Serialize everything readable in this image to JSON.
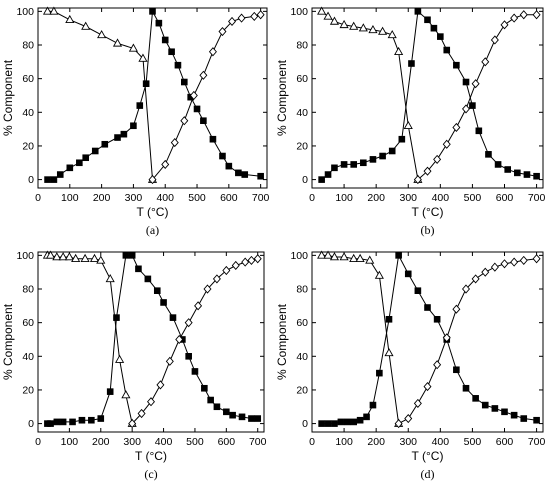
{
  "chart_data": [
    {
      "type": "line",
      "panel_label": "(a)",
      "xlabel": "T (°C)",
      "ylabel": "% Component",
      "xlim": [
        0,
        720
      ],
      "ylim": [
        -5,
        102
      ],
      "xticks": [
        0,
        100,
        200,
        300,
        400,
        500,
        600,
        700
      ],
      "yticks": [
        0,
        20,
        40,
        60,
        80,
        100
      ],
      "grid": false,
      "series": [
        {
          "marker": "triangle-open",
          "x": [
            30,
            50,
            100,
            150,
            200,
            250,
            300,
            330,
            360
          ],
          "y": [
            100,
            100,
            95,
            91,
            86,
            81,
            78,
            72,
            0
          ]
        },
        {
          "marker": "square-filled",
          "x": [
            30,
            50,
            70,
            100,
            130,
            150,
            180,
            210,
            250,
            270,
            300,
            320,
            340,
            360,
            380,
            400,
            420,
            440,
            460,
            480,
            500,
            520,
            550,
            580,
            600,
            630,
            650,
            700
          ],
          "y": [
            0,
            0,
            3,
            7,
            10,
            13,
            17,
            21,
            25,
            27,
            32,
            44,
            57,
            100,
            93,
            83,
            76,
            68,
            58,
            49,
            42,
            35,
            24,
            14,
            8,
            4,
            3,
            2
          ]
        },
        {
          "marker": "diamond-open",
          "x": [
            360,
            400,
            430,
            460,
            490,
            520,
            550,
            580,
            610,
            640,
            680,
            700
          ],
          "y": [
            0,
            9,
            22,
            35,
            50,
            62,
            76,
            88,
            94,
            96,
            97,
            98
          ]
        }
      ]
    },
    {
      "type": "line",
      "panel_label": "(b)",
      "xlabel": "T (°C)",
      "ylabel": "% Component",
      "xlim": [
        0,
        720
      ],
      "ylim": [
        -5,
        102
      ],
      "xticks": [
        0,
        100,
        200,
        300,
        400,
        500,
        600,
        700
      ],
      "yticks": [
        0,
        20,
        40,
        60,
        80,
        100
      ],
      "grid": false,
      "series": [
        {
          "marker": "triangle-open",
          "x": [
            30,
            50,
            70,
            100,
            130,
            160,
            190,
            220,
            250,
            270,
            300,
            330
          ],
          "y": [
            100,
            97,
            94,
            92,
            91,
            90,
            89,
            88,
            86,
            76,
            32,
            0
          ]
        },
        {
          "marker": "square-filled",
          "x": [
            30,
            50,
            70,
            100,
            130,
            160,
            190,
            220,
            250,
            280,
            310,
            330,
            360,
            380,
            400,
            420,
            450,
            480,
            500,
            520,
            550,
            580,
            610,
            640,
            670,
            700
          ],
          "y": [
            0,
            3,
            7,
            9,
            9,
            10,
            12,
            14,
            17,
            24,
            69,
            100,
            95,
            90,
            85,
            77,
            68,
            58,
            44,
            29,
            15,
            9,
            6,
            4,
            3,
            2
          ]
        },
        {
          "marker": "diamond-open",
          "x": [
            330,
            360,
            390,
            420,
            450,
            480,
            510,
            540,
            570,
            600,
            630,
            660,
            700
          ],
          "y": [
            0,
            5,
            12,
            21,
            31,
            42,
            57,
            70,
            83,
            92,
            96,
            98,
            98
          ]
        }
      ]
    },
    {
      "type": "line",
      "panel_label": "(c)",
      "xlabel": "T (°C)",
      "ylabel": "% Component",
      "xlim": [
        0,
        720
      ],
      "ylim": [
        -5,
        102
      ],
      "xticks": [
        0,
        100,
        200,
        300,
        400,
        500,
        600,
        700
      ],
      "yticks": [
        0,
        20,
        40,
        60,
        80,
        100
      ],
      "grid": false,
      "series": [
        {
          "marker": "triangle-open",
          "x": [
            30,
            40,
            60,
            80,
            100,
            120,
            150,
            180,
            200,
            230,
            260,
            280,
            300
          ],
          "y": [
            100,
            100,
            99,
            99,
            99,
            98,
            98,
            98,
            97,
            86,
            38,
            17,
            0
          ]
        },
        {
          "marker": "square-filled",
          "x": [
            30,
            40,
            60,
            80,
            110,
            140,
            170,
            200,
            230,
            250,
            280,
            300,
            320,
            350,
            380,
            400,
            430,
            460,
            480,
            500,
            530,
            550,
            570,
            600,
            620,
            650,
            680,
            700
          ],
          "y": [
            0,
            0,
            1,
            1,
            1,
            2,
            2,
            3,
            19,
            63,
            100,
            100,
            92,
            86,
            79,
            72,
            63,
            50,
            40,
            31,
            21,
            14,
            10,
            7,
            5,
            4,
            3,
            3
          ]
        },
        {
          "marker": "diamond-open",
          "x": [
            300,
            330,
            360,
            390,
            420,
            450,
            480,
            510,
            540,
            570,
            600,
            630,
            660,
            680,
            700
          ],
          "y": [
            0,
            6,
            13,
            23,
            37,
            50,
            60,
            70,
            80,
            86,
            91,
            94,
            96,
            97,
            98
          ]
        }
      ]
    },
    {
      "type": "line",
      "panel_label": "(d)",
      "xlabel": "T (°C)",
      "ylabel": "% Component",
      "xlim": [
        0,
        720
      ],
      "ylim": [
        -5,
        102
      ],
      "xticks": [
        0,
        100,
        200,
        300,
        400,
        500,
        600,
        700
      ],
      "yticks": [
        0,
        20,
        40,
        60,
        80,
        100
      ],
      "grid": false,
      "series": [
        {
          "marker": "triangle-open",
          "x": [
            30,
            50,
            70,
            100,
            130,
            150,
            180,
            210,
            240,
            270
          ],
          "y": [
            100,
            100,
            99,
            99,
            98,
            98,
            97,
            88,
            42,
            0
          ]
        },
        {
          "marker": "square-filled",
          "x": [
            30,
            50,
            70,
            90,
            110,
            130,
            150,
            170,
            190,
            210,
            240,
            270,
            300,
            330,
            360,
            390,
            420,
            450,
            480,
            510,
            540,
            570,
            600,
            630,
            660,
            700
          ],
          "y": [
            0,
            0,
            0,
            1,
            1,
            1,
            2,
            4,
            11,
            30,
            62,
            100,
            89,
            79,
            69,
            62,
            50,
            32,
            21,
            15,
            11,
            9,
            7,
            5,
            3,
            2
          ]
        },
        {
          "marker": "diamond-open",
          "x": [
            270,
            300,
            330,
            360,
            390,
            420,
            450,
            480,
            510,
            540,
            570,
            600,
            630,
            660,
            700
          ],
          "y": [
            0,
            3,
            12,
            22,
            35,
            51,
            68,
            80,
            86,
            90,
            93,
            95,
            96,
            97,
            98
          ]
        }
      ]
    }
  ]
}
